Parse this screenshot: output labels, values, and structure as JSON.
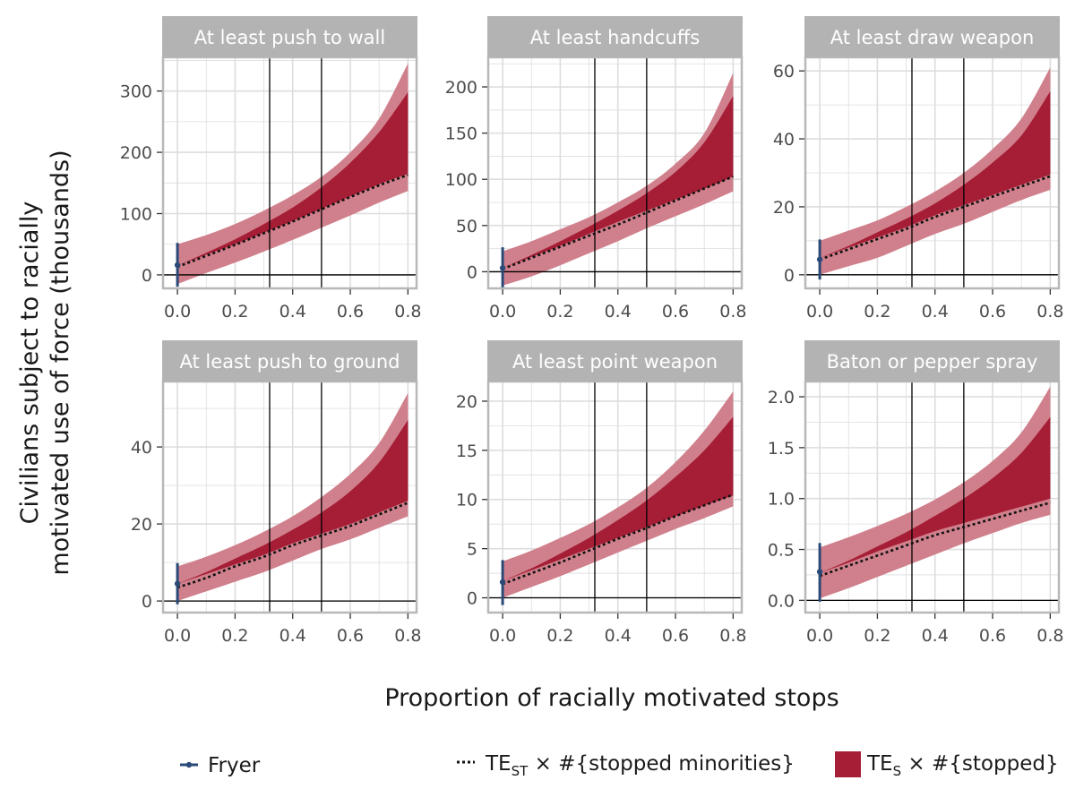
{
  "chart_data": {
    "type": "area",
    "xlabel": "Proportion of racially motivated stops",
    "ylabel_lines": [
      "Civilians subject to racially",
      "motivated use of force (thousands)"
    ],
    "x_ticks": [
      0.0,
      0.2,
      0.4,
      0.6,
      0.8
    ],
    "x_tick_labels": [
      "0.0",
      "0.2",
      "0.4",
      "0.6",
      "0.8"
    ],
    "xlim": [
      -0.05,
      0.83
    ],
    "vlines": [
      0.32,
      0.5
    ],
    "hline": 0,
    "grid": true,
    "legend_position": "bottom",
    "colors": {
      "outer_band": "#d0808c",
      "inner_band": "#a51e36",
      "fryer": "#2b4a78",
      "dotted": "#111111",
      "strip": "#b3b3b3",
      "grid": "#dddddd",
      "frame": "#b8b8b8"
    },
    "legend": [
      {
        "key": "fryer",
        "label": "Fryer"
      },
      {
        "key": "dotted",
        "main": "TE",
        "sub": "ST",
        "rest": " × #{stopped minorities}"
      },
      {
        "key": "band",
        "main": "TE",
        "sub": "S",
        "rest": " × #{stopped}"
      }
    ],
    "panels": [
      {
        "title": "At least push to wall",
        "ylim": [
          -22,
          355
        ],
        "y_ticks": [
          0,
          100,
          200,
          300
        ],
        "y_tick_labels": [
          "0",
          "100",
          "200",
          "300"
        ],
        "x": [
          0.0,
          0.1,
          0.2,
          0.3,
          0.4,
          0.5,
          0.6,
          0.7,
          0.8
        ],
        "outer_lower": [
          -15,
          3,
          20,
          38,
          57,
          77,
          97,
          118,
          137
        ],
        "outer_upper": [
          50,
          65,
          83,
          105,
          130,
          160,
          200,
          255,
          345
        ],
        "inner_lower": [
          15,
          33,
          50,
          69,
          88,
          108,
          128,
          148,
          165
        ],
        "inner_upper": [
          15,
          36,
          58,
          83,
          110,
          143,
          183,
          233,
          298
        ],
        "dotted": [
          13,
          31,
          49,
          68,
          87,
          107,
          127,
          146,
          163
        ],
        "fryer": {
          "x": 0,
          "y": 16,
          "lo": -17,
          "hi": 50
        }
      },
      {
        "title": "At least handcuffs",
        "ylim": [
          -18,
          232
        ],
        "y_ticks": [
          0,
          50,
          100,
          150,
          200
        ],
        "y_tick_labels": [
          "0",
          "50",
          "100",
          "150",
          "200"
        ],
        "x": [
          0.0,
          0.1,
          0.2,
          0.3,
          0.4,
          0.5,
          0.6,
          0.7,
          0.8
        ],
        "outer_lower": [
          -15,
          -5,
          7,
          20,
          33,
          47,
          60,
          73,
          87
        ],
        "outer_upper": [
          22,
          33,
          46,
          59,
          75,
          93,
          117,
          150,
          215
        ],
        "inner_lower": [
          4,
          16,
          28,
          41,
          54,
          66,
          78,
          90,
          103
        ],
        "inner_upper": [
          4,
          18,
          33,
          49,
          66,
          85,
          108,
          140,
          190
        ],
        "dotted": [
          3,
          15,
          27,
          39,
          51,
          64,
          77,
          90,
          103
        ],
        "fryer": {
          "x": 0,
          "y": 4,
          "lo": -17,
          "hi": 25
        }
      },
      {
        "title": "At least draw weapon",
        "ylim": [
          -4,
          64
        ],
        "y_ticks": [
          0,
          20,
          40,
          60
        ],
        "y_tick_labels": [
          "0",
          "20",
          "40",
          "60"
        ],
        "x": [
          0.0,
          0.1,
          0.2,
          0.3,
          0.4,
          0.5,
          0.6,
          0.7,
          0.8
        ],
        "outer_lower": [
          0,
          2.5,
          5,
          8.5,
          12,
          15,
          18.5,
          22,
          25
        ],
        "outer_upper": [
          10,
          13,
          16,
          20,
          24.5,
          30,
          37,
          46,
          61
        ],
        "inner_lower": [
          5,
          8,
          11,
          14,
          17.5,
          20.5,
          23.5,
          26.5,
          29.5
        ],
        "inner_upper": [
          5,
          8.5,
          12.5,
          16.5,
          21,
          26.5,
          33,
          41,
          54
        ],
        "dotted": [
          4.5,
          7.5,
          10.5,
          13.5,
          17,
          20,
          23,
          26,
          29
        ],
        "fryer": {
          "x": 0,
          "y": 4.5,
          "lo": -1,
          "hi": 10
        }
      },
      {
        "title": "At least push to ground",
        "ylim": [
          -3,
          57
        ],
        "y_ticks": [
          0,
          20,
          40
        ],
        "y_tick_labels": [
          "0",
          "20",
          "40"
        ],
        "x": [
          0.0,
          0.1,
          0.2,
          0.3,
          0.4,
          0.5,
          0.6,
          0.7,
          0.8
        ],
        "outer_lower": [
          0,
          2.5,
          5,
          7.5,
          10.5,
          13.5,
          16,
          19,
          22
        ],
        "outer_upper": [
          9,
          11.5,
          14.5,
          18,
          22,
          27,
          33,
          41,
          54
        ],
        "inner_lower": [
          4.5,
          7,
          9.5,
          12,
          15,
          17.5,
          20,
          23,
          26
        ],
        "inner_upper": [
          4.5,
          7.5,
          11,
          14.5,
          18.5,
          23,
          28.5,
          36,
          47
        ],
        "dotted": [
          3.5,
          6,
          9,
          11.5,
          14.5,
          17,
          19.5,
          22.5,
          25.5
        ],
        "fryer": {
          "x": 0,
          "y": 4.5,
          "lo": -0.5,
          "hi": 9.5
        }
      },
      {
        "title": "At least point weapon",
        "ylim": [
          -1.5,
          22
        ],
        "y_ticks": [
          0,
          5,
          10,
          15,
          20
        ],
        "y_tick_labels": [
          "0",
          "5",
          "10",
          "15",
          "20"
        ],
        "x": [
          0.0,
          0.1,
          0.2,
          0.3,
          0.4,
          0.5,
          0.6,
          0.7,
          0.8
        ],
        "outer_lower": [
          0,
          1.1,
          2.2,
          3.4,
          4.6,
          5.8,
          7.0,
          8.1,
          9.3
        ],
        "outer_upper": [
          3.7,
          4.8,
          6.1,
          7.5,
          9.2,
          11.2,
          13.8,
          17,
          21
        ],
        "inner_lower": [
          1.7,
          2.8,
          3.9,
          5.0,
          6.1,
          7.2,
          8.3,
          9.4,
          10.4
        ],
        "inner_upper": [
          1.7,
          3.0,
          4.5,
          6.1,
          7.9,
          9.9,
          12.3,
          15,
          18.4
        ],
        "dotted": [
          1.4,
          2.5,
          3.6,
          4.8,
          6.0,
          7.1,
          8.3,
          9.4,
          10.5
        ],
        "fryer": {
          "x": 0,
          "y": 1.6,
          "lo": -0.6,
          "hi": 3.7
        }
      },
      {
        "title": "Baton or pepper spray",
        "ylim": [
          -0.12,
          2.15
        ],
        "y_ticks": [
          0.0,
          0.5,
          1.0,
          1.5,
          2.0
        ],
        "y_tick_labels": [
          "0.0",
          "0.5",
          "1.0",
          "1.5",
          "2.0"
        ],
        "x": [
          0.0,
          0.1,
          0.2,
          0.3,
          0.4,
          0.5,
          0.6,
          0.7,
          0.8
        ],
        "outer_lower": [
          0.02,
          0.12,
          0.23,
          0.34,
          0.45,
          0.56,
          0.66,
          0.76,
          0.84
        ],
        "outer_upper": [
          0.52,
          0.62,
          0.73,
          0.85,
          0.99,
          1.16,
          1.37,
          1.65,
          2.1
        ],
        "inner_lower": [
          0.27,
          0.37,
          0.48,
          0.58,
          0.68,
          0.76,
          0.84,
          0.92,
          1.0
        ],
        "inner_upper": [
          0.27,
          0.39,
          0.53,
          0.67,
          0.83,
          1.0,
          1.2,
          1.45,
          1.8
        ],
        "dotted": [
          0.24,
          0.34,
          0.44,
          0.54,
          0.64,
          0.72,
          0.8,
          0.88,
          0.96
        ],
        "fryer": {
          "x": 0,
          "y": 0.28,
          "lo": 0.0,
          "hi": 0.55
        }
      }
    ]
  }
}
